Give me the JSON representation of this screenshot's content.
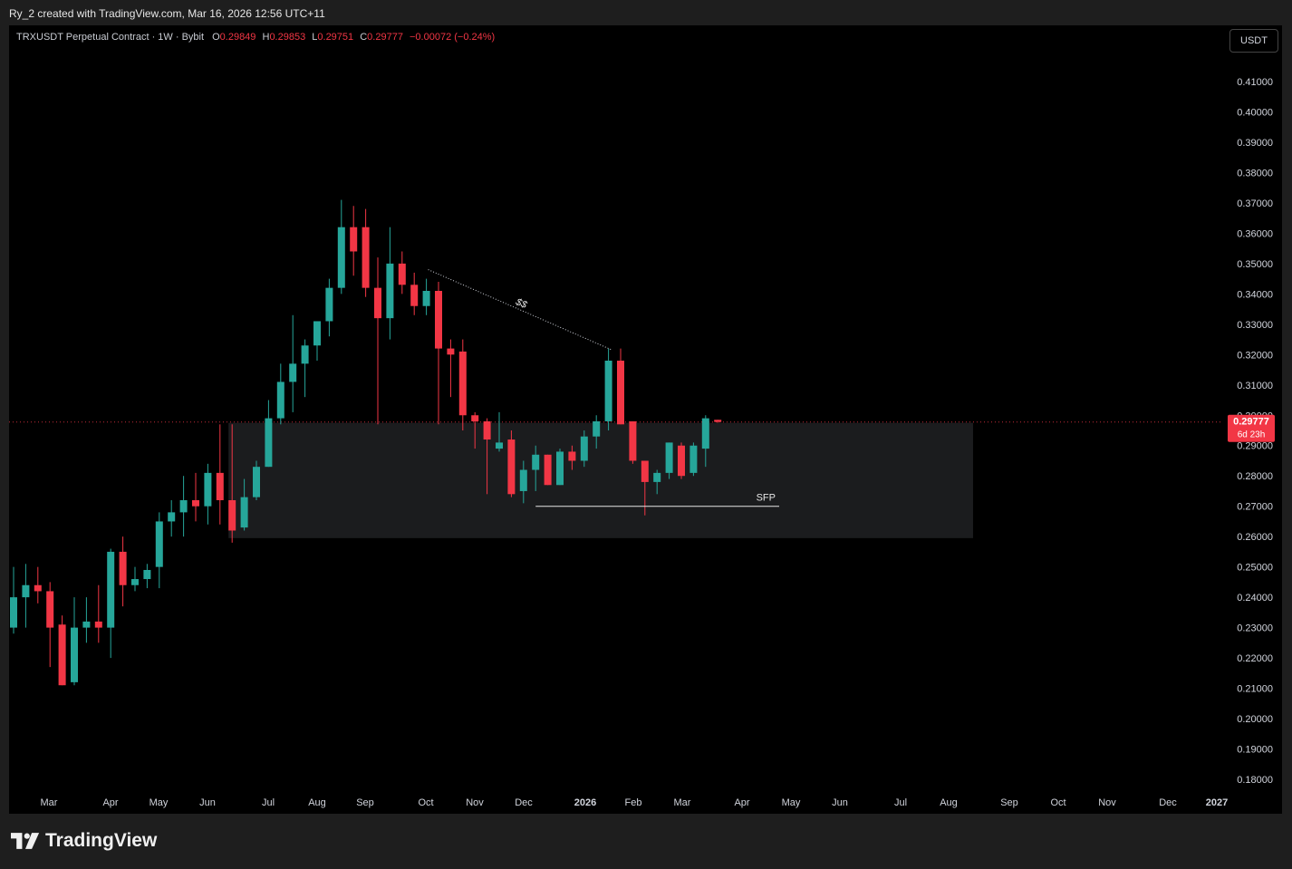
{
  "header": {
    "caption": "Ry_2 created with TradingView.com, Mar 16, 2026 12:56 UTC+11"
  },
  "legend": {
    "symbol": "TRXUSDT Perpetual Contract · 1W · Bybit",
    "o_label": "O",
    "o_value": "0.29849",
    "h_label": "H",
    "h_value": "0.29853",
    "l_label": "L",
    "l_value": "0.29751",
    "c_label": "C",
    "c_value": "0.29777",
    "change": "−0.00072 (−0.24%)"
  },
  "currency_button": "USDT",
  "price_tag": {
    "price": "0.29777",
    "countdown": "6d 23h"
  },
  "brand": {
    "name": "TradingView"
  },
  "colors": {
    "up": "#26a69a",
    "down": "#f23645",
    "zone": "#1b1c1e",
    "background": "#000000"
  },
  "chart_data": {
    "type": "candlestick",
    "symbol": "TRXUSDT",
    "interval": "1W",
    "ylim": [
      0.175,
      0.4175
    ],
    "y_ticks": [
      "0.18000",
      "0.19000",
      "0.20000",
      "0.21000",
      "0.22000",
      "0.23000",
      "0.24000",
      "0.25000",
      "0.26000",
      "0.27000",
      "0.28000",
      "0.29000",
      "0.30000",
      "0.31000",
      "0.32000",
      "0.33000",
      "0.34000",
      "0.35000",
      "0.36000",
      "0.37000",
      "0.38000",
      "0.39000",
      "0.40000",
      "0.41000"
    ],
    "x_ticks": [
      "Mar",
      "Apr",
      "May",
      "Jun",
      "Jul",
      "Aug",
      "Sep",
      "Oct",
      "Nov",
      "Dec",
      "2026",
      "Feb",
      "Mar",
      "Apr",
      "May",
      "Jun",
      "Jul",
      "Aug",
      "Sep",
      "Oct",
      "Nov",
      "Dec",
      "2027"
    ],
    "candles": [
      {
        "o": 0.23,
        "h": 0.25,
        "l": 0.228,
        "c": 0.24
      },
      {
        "o": 0.24,
        "h": 0.251,
        "l": 0.23,
        "c": 0.244
      },
      {
        "o": 0.244,
        "h": 0.25,
        "l": 0.238,
        "c": 0.242
      },
      {
        "o": 0.242,
        "h": 0.245,
        "l": 0.217,
        "c": 0.23
      },
      {
        "o": 0.231,
        "h": 0.234,
        "l": 0.211,
        "c": 0.211
      },
      {
        "o": 0.212,
        "h": 0.24,
        "l": 0.211,
        "c": 0.23
      },
      {
        "o": 0.23,
        "h": 0.24,
        "l": 0.225,
        "c": 0.232
      },
      {
        "o": 0.232,
        "h": 0.244,
        "l": 0.225,
        "c": 0.23
      },
      {
        "o": 0.23,
        "h": 0.256,
        "l": 0.22,
        "c": 0.255
      },
      {
        "o": 0.255,
        "h": 0.26,
        "l": 0.237,
        "c": 0.244
      },
      {
        "o": 0.244,
        "h": 0.25,
        "l": 0.242,
        "c": 0.246
      },
      {
        "o": 0.246,
        "h": 0.251,
        "l": 0.243,
        "c": 0.249
      },
      {
        "o": 0.25,
        "h": 0.268,
        "l": 0.243,
        "c": 0.265
      },
      {
        "o": 0.265,
        "h": 0.272,
        "l": 0.26,
        "c": 0.268
      },
      {
        "o": 0.268,
        "h": 0.28,
        "l": 0.26,
        "c": 0.272
      },
      {
        "o": 0.272,
        "h": 0.281,
        "l": 0.265,
        "c": 0.27
      },
      {
        "o": 0.27,
        "h": 0.284,
        "l": 0.264,
        "c": 0.281
      },
      {
        "o": 0.281,
        "h": 0.297,
        "l": 0.264,
        "c": 0.272
      },
      {
        "o": 0.272,
        "h": 0.297,
        "l": 0.258,
        "c": 0.262
      },
      {
        "o": 0.263,
        "h": 0.279,
        "l": 0.262,
        "c": 0.273
      },
      {
        "o": 0.273,
        "h": 0.285,
        "l": 0.272,
        "c": 0.283
      },
      {
        "o": 0.283,
        "h": 0.305,
        "l": 0.283,
        "c": 0.299
      },
      {
        "o": 0.299,
        "h": 0.317,
        "l": 0.297,
        "c": 0.311
      },
      {
        "o": 0.311,
        "h": 0.333,
        "l": 0.301,
        "c": 0.317
      },
      {
        "o": 0.317,
        "h": 0.325,
        "l": 0.306,
        "c": 0.323
      },
      {
        "o": 0.323,
        "h": 0.33,
        "l": 0.318,
        "c": 0.331
      },
      {
        "o": 0.331,
        "h": 0.345,
        "l": 0.326,
        "c": 0.342
      },
      {
        "o": 0.342,
        "h": 0.371,
        "l": 0.34,
        "c": 0.362
      },
      {
        "o": 0.362,
        "h": 0.369,
        "l": 0.346,
        "c": 0.354
      },
      {
        "o": 0.362,
        "h": 0.368,
        "l": 0.339,
        "c": 0.342
      },
      {
        "o": 0.342,
        "h": 0.352,
        "l": 0.297,
        "c": 0.332
      },
      {
        "o": 0.332,
        "h": 0.362,
        "l": 0.325,
        "c": 0.35
      },
      {
        "o": 0.35,
        "h": 0.354,
        "l": 0.34,
        "c": 0.343
      },
      {
        "o": 0.343,
        "h": 0.347,
        "l": 0.333,
        "c": 0.336
      },
      {
        "o": 0.336,
        "h": 0.345,
        "l": 0.333,
        "c": 0.341
      },
      {
        "o": 0.341,
        "h": 0.344,
        "l": 0.297,
        "c": 0.322
      },
      {
        "o": 0.322,
        "h": 0.325,
        "l": 0.306,
        "c": 0.32
      },
      {
        "o": 0.321,
        "h": 0.325,
        "l": 0.295,
        "c": 0.3
      },
      {
        "o": 0.3,
        "h": 0.301,
        "l": 0.289,
        "c": 0.298
      },
      {
        "o": 0.298,
        "h": 0.299,
        "l": 0.274,
        "c": 0.292
      },
      {
        "o": 0.289,
        "h": 0.301,
        "l": 0.288,
        "c": 0.291
      },
      {
        "o": 0.292,
        "h": 0.295,
        "l": 0.273,
        "c": 0.274
      },
      {
        "o": 0.275,
        "h": 0.285,
        "l": 0.271,
        "c": 0.282
      },
      {
        "o": 0.282,
        "h": 0.29,
        "l": 0.275,
        "c": 0.287
      },
      {
        "o": 0.287,
        "h": 0.287,
        "l": 0.277,
        "c": 0.277
      },
      {
        "o": 0.277,
        "h": 0.289,
        "l": 0.277,
        "c": 0.288
      },
      {
        "o": 0.288,
        "h": 0.29,
        "l": 0.282,
        "c": 0.285
      },
      {
        "o": 0.285,
        "h": 0.295,
        "l": 0.283,
        "c": 0.293
      },
      {
        "o": 0.293,
        "h": 0.3,
        "l": 0.289,
        "c": 0.298
      },
      {
        "o": 0.298,
        "h": 0.322,
        "l": 0.295,
        "c": 0.318
      },
      {
        "o": 0.318,
        "h": 0.322,
        "l": 0.297,
        "c": 0.297
      },
      {
        "o": 0.298,
        "h": 0.298,
        "l": 0.284,
        "c": 0.285
      },
      {
        "o": 0.285,
        "h": 0.285,
        "l": 0.267,
        "c": 0.278
      },
      {
        "o": 0.278,
        "h": 0.282,
        "l": 0.274,
        "c": 0.281
      },
      {
        "o": 0.281,
        "h": 0.291,
        "l": 0.279,
        "c": 0.291
      },
      {
        "o": 0.29,
        "h": 0.291,
        "l": 0.279,
        "c": 0.28
      },
      {
        "o": 0.281,
        "h": 0.291,
        "l": 0.28,
        "c": 0.29
      },
      {
        "o": 0.289,
        "h": 0.3,
        "l": 0.283,
        "c": 0.299
      },
      {
        "o": 0.2985,
        "h": 0.2985,
        "l": 0.2975,
        "c": 0.2978
      }
    ],
    "zone": {
      "top": 0.2975,
      "bottom": 0.2595
    },
    "annotations": [
      {
        "label": "$$",
        "type": "dotted-trendline",
        "from_price": 0.348,
        "to_price": 0.3215
      },
      {
        "label": "SFP",
        "type": "horizontal-line",
        "price": 0.27
      }
    ],
    "current_price": 0.29777
  }
}
